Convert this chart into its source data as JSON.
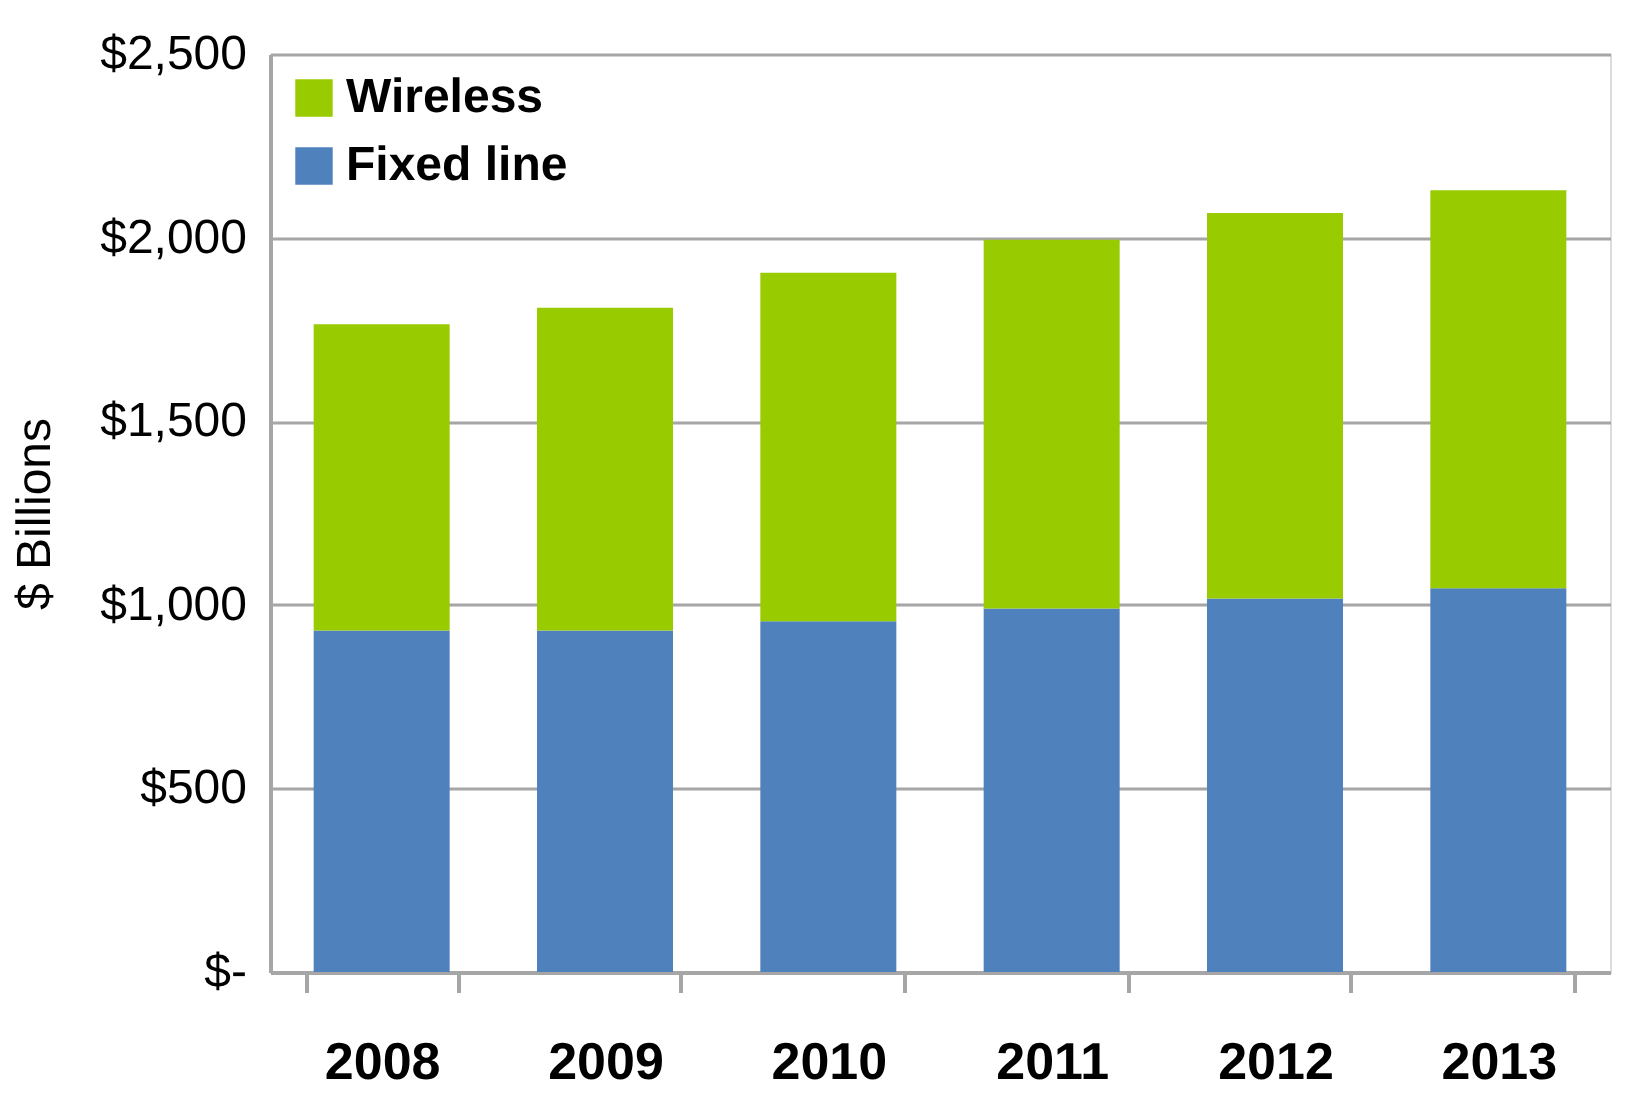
{
  "chart_data": {
    "type": "bar",
    "stacked": true,
    "ylabel": "$ Billions",
    "categories": [
      "2008",
      "2009",
      "2010",
      "2011",
      "2012",
      "2013"
    ],
    "series": [
      {
        "name": "Fixed line",
        "color": "#4f81bd",
        "values": [
          930,
          930,
          955,
          990,
          1017,
          1045
        ]
      },
      {
        "name": "Wireless",
        "color": "#99cc00",
        "values": [
          834,
          879,
          949,
          1004,
          1050,
          1084
        ]
      }
    ],
    "ylim": [
      0,
      2500
    ],
    "yticks": [
      {
        "value": 0,
        "label": "$-"
      },
      {
        "value": 500,
        "label": "$500"
      },
      {
        "value": 1000,
        "label": "$1,000"
      },
      {
        "value": 1500,
        "label": "$1,500"
      },
      {
        "value": 2000,
        "label": "$2,000"
      },
      {
        "value": 2500,
        "label": "$2,500"
      }
    ],
    "grid": "y",
    "legend": "top left"
  }
}
